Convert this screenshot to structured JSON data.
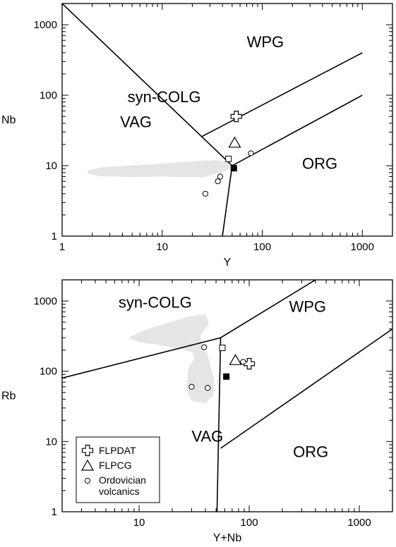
{
  "chart_data": [
    {
      "type": "scatter",
      "panel": "Y vs Nb",
      "xlabel": "Y",
      "ylabel": "Nb",
      "xscale": "log",
      "yscale": "log",
      "xlim": [
        1,
        2000
      ],
      "ylim": [
        1,
        2000
      ],
      "x_ticks": [
        1,
        10,
        100,
        1000
      ],
      "y_ticks": [
        1,
        10,
        100,
        1000
      ],
      "x_tick_labels": [
        "1",
        "10",
        "100",
        "1000"
      ],
      "y_tick_labels": [
        "1",
        "10",
        "100",
        "1000"
      ],
      "field_labels": [
        {
          "text": "WPG",
          "x": 70,
          "y": 480
        },
        {
          "text": "syn-COLG",
          "x": 4.5,
          "y": 80
        },
        {
          "text": "VAG",
          "x": 3.8,
          "y": 35
        },
        {
          "text": "ORG",
          "x": 250,
          "y": 9
        }
      ],
      "boundaries": [
        [
          [
            1,
            2000
          ],
          [
            50,
            10
          ],
          [
            1000,
            100
          ]
        ],
        [
          [
            50,
            10
          ],
          [
            40,
            1
          ]
        ],
        [
          [
            25,
            26
          ],
          [
            1000,
            400
          ]
        ]
      ],
      "grey_field": [
        [
          1.8,
          8.5
        ],
        [
          2.5,
          9.5
        ],
        [
          8,
          10.5
        ],
        [
          20,
          11.5
        ],
        [
          35,
          12
        ],
        [
          48,
          11
        ],
        [
          50,
          9.5
        ],
        [
          40,
          8
        ],
        [
          25,
          6.8
        ],
        [
          10,
          7.0
        ],
        [
          5,
          6.9
        ],
        [
          2.3,
          7.1
        ],
        [
          1.8,
          7.8
        ]
      ],
      "series": [
        {
          "name": "FLPDAT",
          "marker": "cross",
          "points": [
            [
              55,
              50
            ]
          ]
        },
        {
          "name": "FLPCG",
          "marker": "triangle",
          "points": [
            [
              53,
              21
            ]
          ]
        },
        {
          "name": "Ordovician volcanics",
          "marker": "circle",
          "points": [
            [
              27,
              4
            ],
            [
              36,
              6
            ],
            [
              38,
              7
            ],
            [
              77,
              15
            ]
          ]
        },
        {
          "name": "",
          "marker": "open-square",
          "points": [
            [
              46,
              12.5
            ]
          ]
        },
        {
          "name": "",
          "marker": "filled-square",
          "points": [
            [
              52,
              9.2
            ]
          ]
        }
      ]
    },
    {
      "type": "scatter",
      "panel": "Y+Nb vs Rb",
      "xlabel": "Y+Nb",
      "ylabel": "Rb",
      "xscale": "log",
      "yscale": "log",
      "xlim": [
        2,
        2000
      ],
      "ylim": [
        1,
        2000
      ],
      "x_ticks": [
        10,
        100,
        1000
      ],
      "y_ticks": [
        1,
        10,
        100,
        1000
      ],
      "x_tick_labels": [
        "10",
        "100",
        "1000"
      ],
      "y_tick_labels": [
        "1",
        "10",
        "100",
        "1000"
      ],
      "field_labels": [
        {
          "text": "syn-COLG",
          "x": 6.5,
          "y": 800
        },
        {
          "text": "WPG",
          "x": 230,
          "y": 700
        },
        {
          "text": "VAG",
          "x": 30,
          "y": 10
        },
        {
          "text": "ORG",
          "x": 250,
          "y": 6
        }
      ],
      "boundaries": [
        [
          [
            2,
            80
          ],
          [
            55,
            300
          ],
          [
            400,
            2000
          ]
        ],
        [
          [
            55,
            300
          ],
          [
            51,
            1
          ]
        ],
        [
          [
            55,
            8
          ],
          [
            2000,
            400
          ]
        ]
      ],
      "grey_field": [
        [
          14,
          430
        ],
        [
          28,
          600
        ],
        [
          40,
          650
        ],
        [
          43,
          480
        ],
        [
          36,
          320
        ],
        [
          37,
          240
        ],
        [
          42,
          170
        ],
        [
          45,
          110
        ],
        [
          48,
          80
        ],
        [
          47,
          45
        ],
        [
          40,
          35
        ],
        [
          30,
          38
        ],
        [
          27,
          55
        ],
        [
          28,
          110
        ],
        [
          32,
          155
        ],
        [
          30,
          190
        ],
        [
          25,
          200
        ],
        [
          17,
          230
        ],
        [
          10,
          260
        ],
        [
          8,
          300
        ],
        [
          10,
          360
        ]
      ],
      "series": [
        {
          "name": "FLPDAT",
          "marker": "cross",
          "points": [
            [
              100,
              128
            ]
          ]
        },
        {
          "name": "FLPCG",
          "marker": "triangle",
          "points": [
            [
              75,
              143
            ]
          ]
        },
        {
          "name": "Ordovician volcanics",
          "marker": "circle",
          "points": [
            [
              39,
              220
            ],
            [
              30,
              60
            ],
            [
              42,
              58
            ],
            [
              88,
              136
            ]
          ]
        },
        {
          "name": "",
          "marker": "open-square",
          "points": [
            [
              57,
              215
            ]
          ]
        },
        {
          "name": "",
          "marker": "filled-square",
          "points": [
            [
              62,
              84
            ]
          ]
        }
      ],
      "legend": {
        "placement": "bottom-left",
        "entries": [
          {
            "marker": "cross",
            "label": "FLPDAT"
          },
          {
            "marker": "triangle",
            "label": "FLPCG"
          },
          {
            "marker": "circle",
            "label": "Ordovician",
            "label2": "volcanics"
          }
        ]
      }
    }
  ],
  "colors": {
    "grey_field": "#e5e5e5",
    "line": "#000000",
    "marker_fill": "#ffffff",
    "filled_marker": "#000000"
  }
}
